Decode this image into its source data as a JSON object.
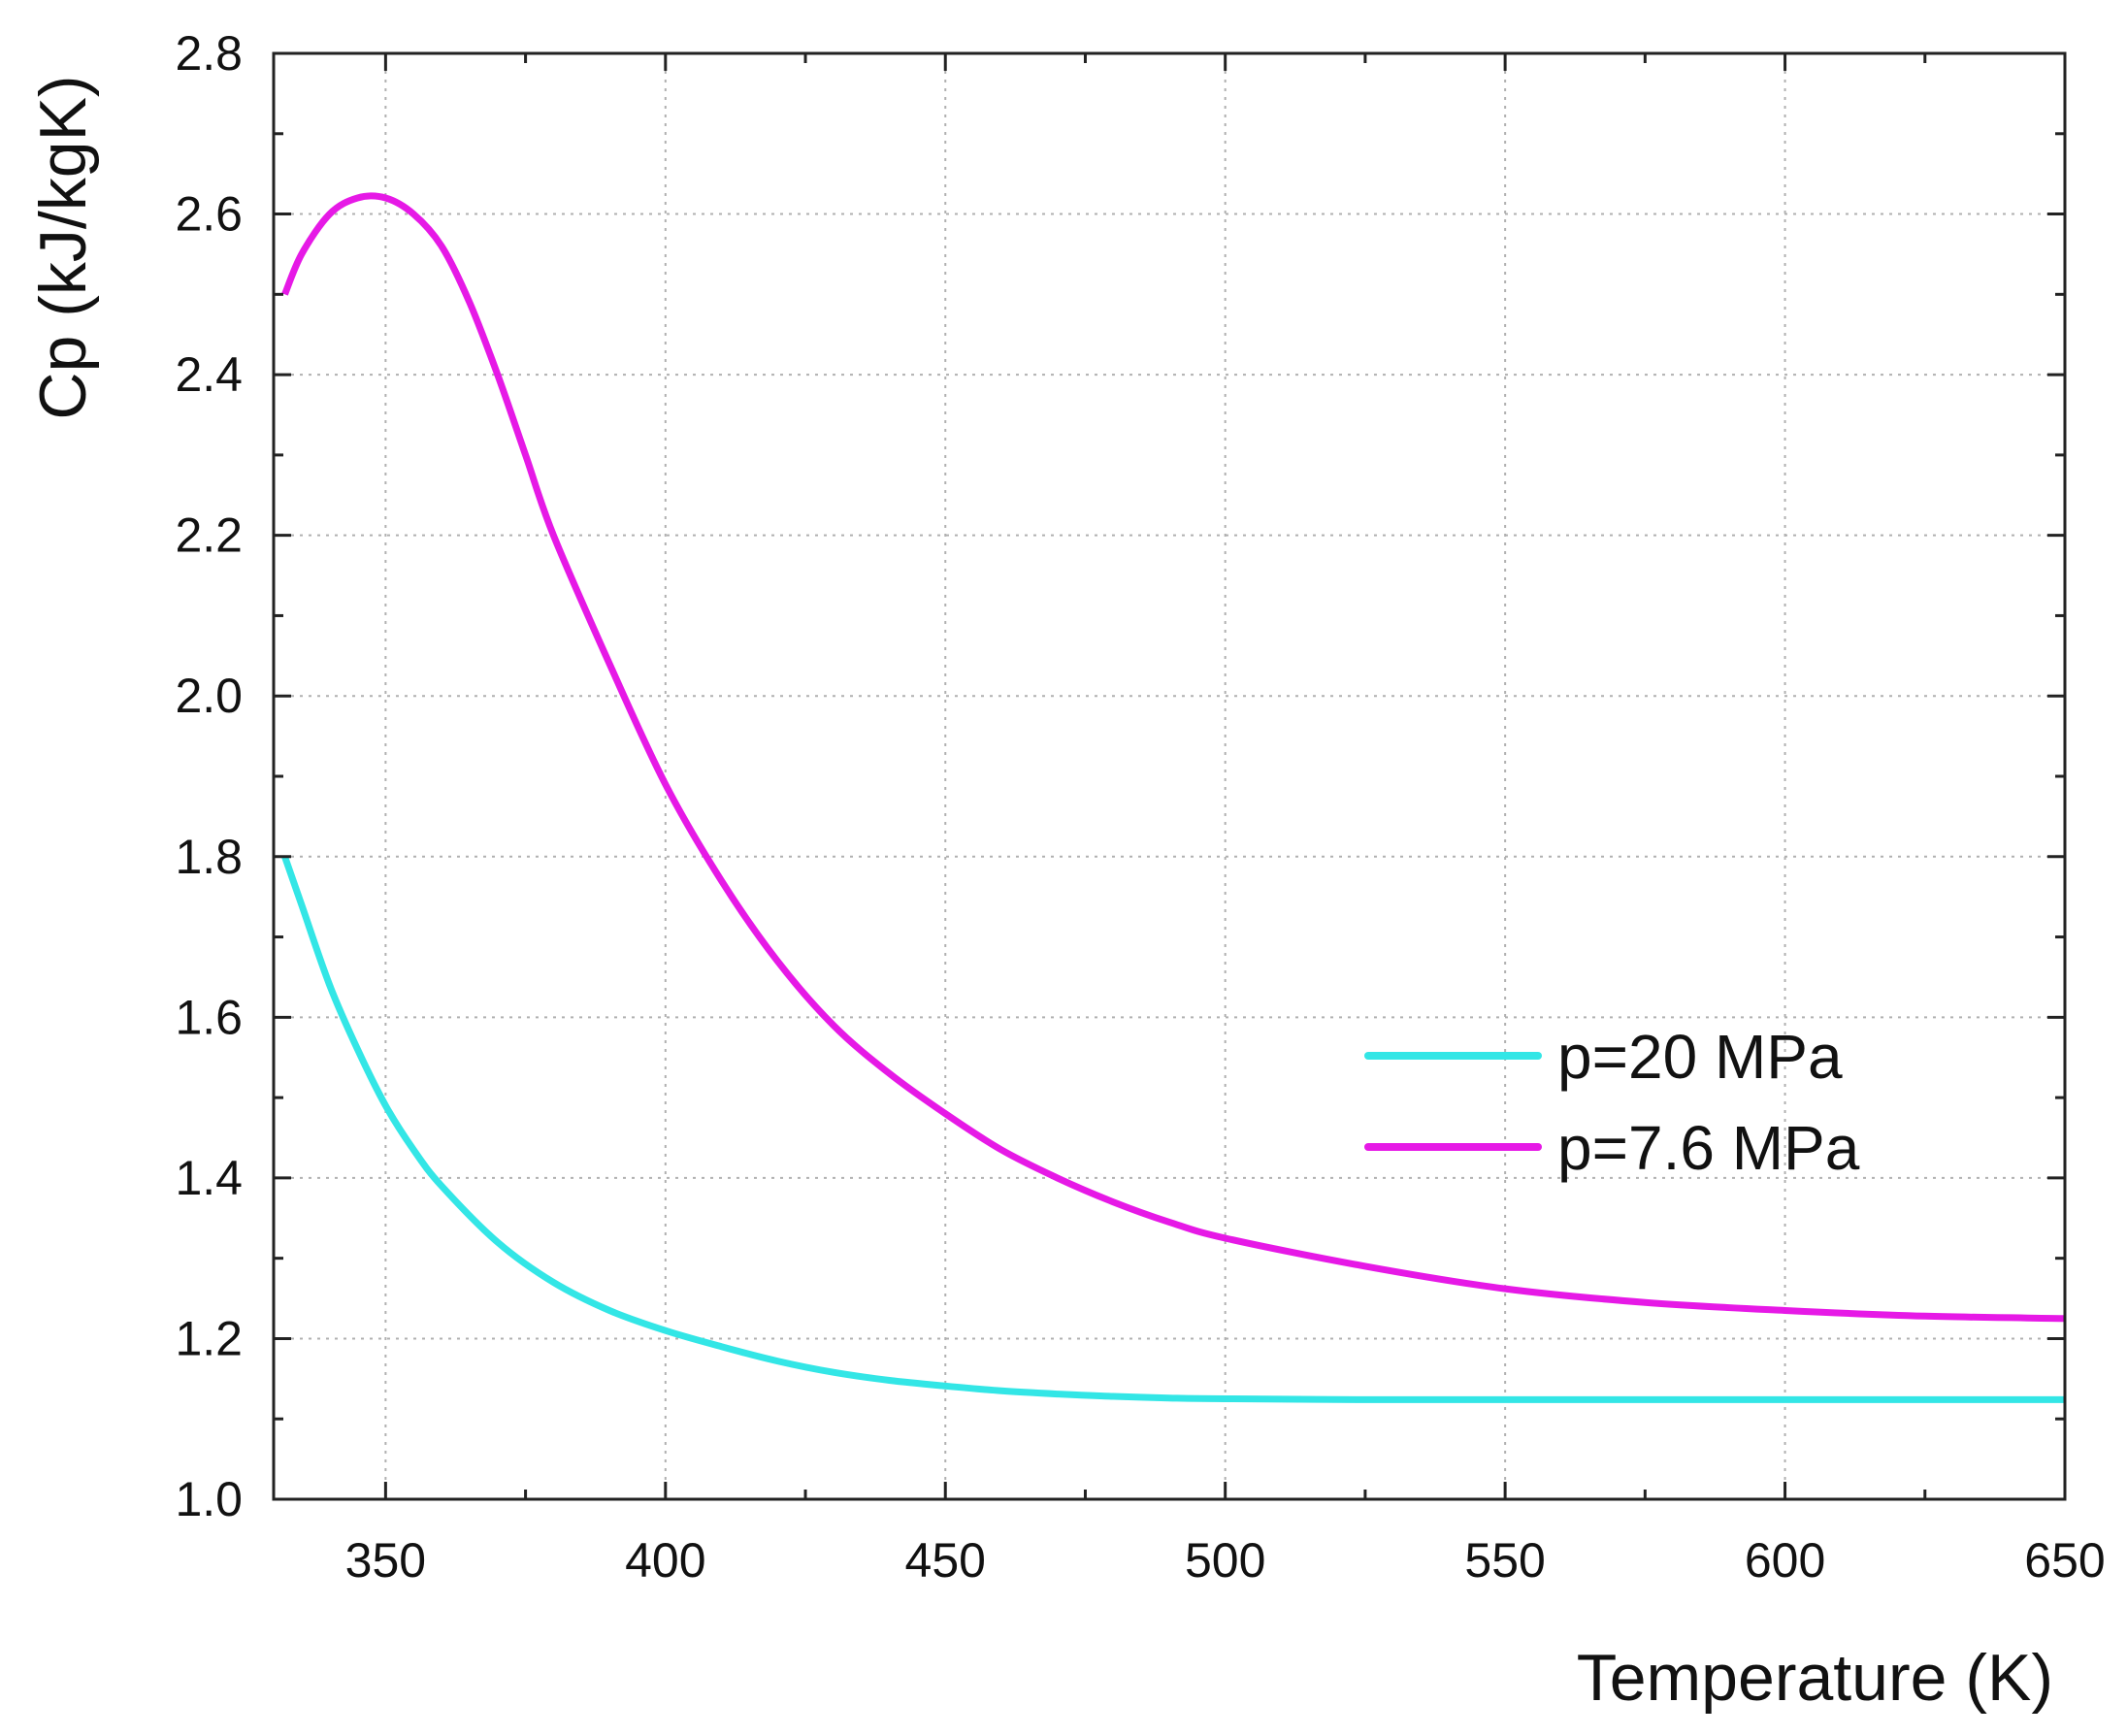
{
  "chart_data": {
    "type": "line",
    "title": "",
    "xlabel": "Temperature (K)",
    "ylabel": "Cp (kJ/kgK)",
    "xlim": [
      330,
      650
    ],
    "ylim": [
      1.0,
      2.8
    ],
    "xticks": [
      "350",
      "400",
      "450",
      "500",
      "550",
      "600",
      "650"
    ],
    "yticks": [
      "1.0",
      "1.2",
      "1.4",
      "1.6",
      "1.8",
      "2.0",
      "2.2",
      "2.4",
      "2.6",
      "2.8"
    ],
    "grid": true,
    "legend_position": "middle-right",
    "series": [
      {
        "name": "p=20 MPa",
        "color": "#33e6e6",
        "x": [
          332,
          335,
          340,
          345,
          350,
          355,
          360,
          370,
          380,
          390,
          400,
          410,
          420,
          430,
          440,
          450,
          460,
          470,
          480,
          490,
          500,
          525,
          550,
          575,
          600,
          625,
          650
        ],
        "y": [
          1.8,
          1.74,
          1.64,
          1.56,
          1.49,
          1.435,
          1.39,
          1.32,
          1.27,
          1.235,
          1.21,
          1.19,
          1.172,
          1.158,
          1.148,
          1.141,
          1.135,
          1.131,
          1.128,
          1.126,
          1.125,
          1.124,
          1.124,
          1.124,
          1.124,
          1.124,
          1.124
        ]
      },
      {
        "name": "p=7.6 MPa",
        "color": "#e619e6",
        "x": [
          332,
          335,
          340,
          345,
          350,
          355,
          360,
          365,
          370,
          375,
          380,
          390,
          400,
          410,
          420,
          430,
          440,
          450,
          460,
          470,
          480,
          490,
          500,
          525,
          550,
          575,
          600,
          625,
          650
        ],
        "y": [
          2.5,
          2.55,
          2.6,
          2.62,
          2.62,
          2.6,
          2.56,
          2.49,
          2.4,
          2.3,
          2.2,
          2.04,
          1.89,
          1.77,
          1.67,
          1.59,
          1.53,
          1.48,
          1.435,
          1.4,
          1.37,
          1.345,
          1.325,
          1.29,
          1.262,
          1.245,
          1.235,
          1.228,
          1.225
        ]
      }
    ]
  }
}
